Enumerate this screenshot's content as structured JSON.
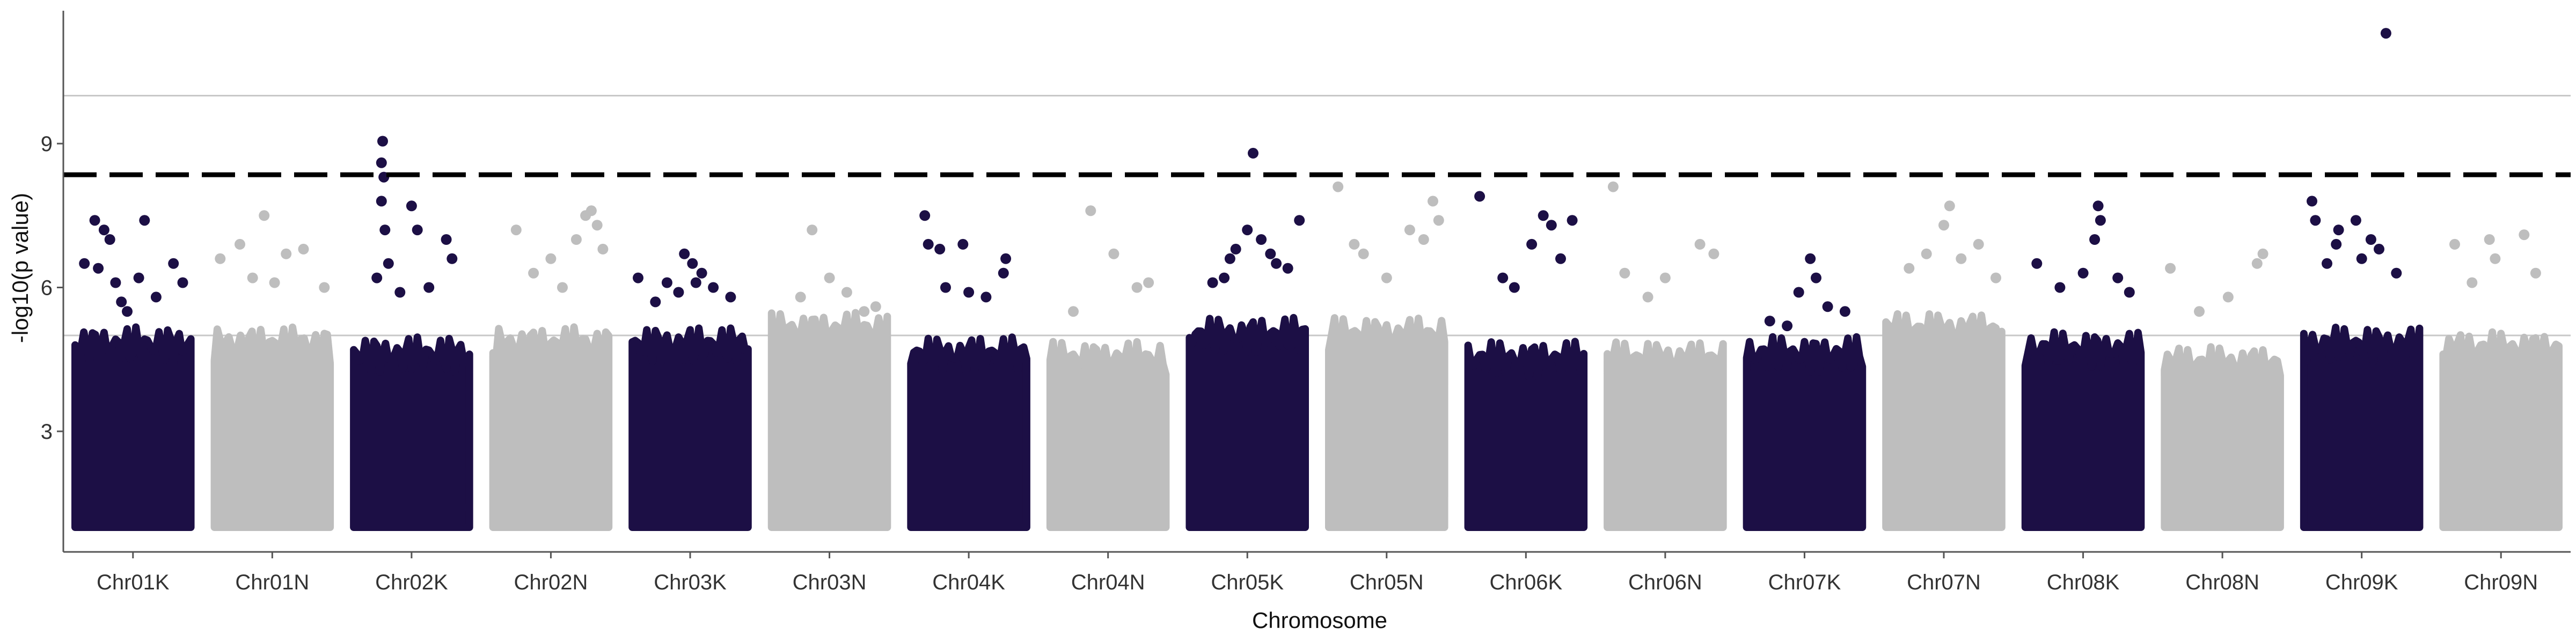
{
  "chart_data": {
    "type": "scatter",
    "subtype": "manhattan",
    "xlabel": "Chromosome",
    "ylabel": "-log10(p value)",
    "categories": [
      "Chr01K",
      "Chr01N",
      "Chr02K",
      "Chr02N",
      "Chr03K",
      "Chr03N",
      "Chr04K",
      "Chr04N",
      "Chr05K",
      "Chr05N",
      "Chr06K",
      "Chr06N",
      "Chr07K",
      "Chr07N",
      "Chr08K",
      "Chr08N",
      "Chr09K",
      "Chr09N"
    ],
    "ylim": [
      0.6,
      11.8
    ],
    "yticks": [
      3,
      6,
      9
    ],
    "colors": {
      "k_group": "#1c0f45",
      "n_group": "#bebebe",
      "threshold": "#000000",
      "refline": "#c8c8c8"
    },
    "threshold_line": {
      "y": 8.35,
      "style": "dashed"
    },
    "reference_lines": [
      5.0,
      10.0
    ],
    "grid": false,
    "legend": "none",
    "chromosomes": [
      {
        "name": "Chr01K",
        "group": "k",
        "bulk_max": 4.8,
        "points": [
          [
            0.08,
            6.5
          ],
          [
            0.17,
            7.4
          ],
          [
            0.25,
            7.2
          ],
          [
            0.3,
            7.0
          ],
          [
            0.35,
            6.1
          ],
          [
            0.45,
            5.5
          ],
          [
            0.55,
            6.2
          ],
          [
            0.6,
            7.4
          ],
          [
            0.7,
            5.8
          ],
          [
            0.85,
            6.5
          ],
          [
            0.93,
            6.1
          ],
          [
            0.2,
            6.4
          ],
          [
            0.4,
            5.7
          ]
        ]
      },
      {
        "name": "Chr01N",
        "group": "n",
        "bulk_max": 4.8,
        "points": [
          [
            0.05,
            6.6
          ],
          [
            0.22,
            6.9
          ],
          [
            0.43,
            7.5
          ],
          [
            0.62,
            6.7
          ],
          [
            0.77,
            6.8
          ],
          [
            0.95,
            6.0
          ],
          [
            0.33,
            6.2
          ],
          [
            0.52,
            6.1
          ]
        ]
      },
      {
        "name": "Chr02K",
        "group": "k",
        "bulk_max": 4.6,
        "points": [
          [
            0.25,
            9.05
          ],
          [
            0.24,
            8.6
          ],
          [
            0.26,
            8.3
          ],
          [
            0.24,
            7.8
          ],
          [
            0.27,
            7.2
          ],
          [
            0.5,
            7.7
          ],
          [
            0.55,
            7.2
          ],
          [
            0.8,
            7.0
          ],
          [
            0.85,
            6.6
          ],
          [
            0.3,
            6.5
          ],
          [
            0.2,
            6.2
          ],
          [
            0.65,
            6.0
          ],
          [
            0.4,
            5.9
          ]
        ]
      },
      {
        "name": "Chr02N",
        "group": "n",
        "bulk_max": 4.8,
        "points": [
          [
            0.2,
            7.2
          ],
          [
            0.35,
            6.3
          ],
          [
            0.5,
            6.6
          ],
          [
            0.72,
            7.0
          ],
          [
            0.85,
            7.6
          ],
          [
            0.9,
            7.3
          ],
          [
            0.8,
            7.5
          ],
          [
            0.6,
            6.0
          ],
          [
            0.95,
            6.8
          ]
        ]
      },
      {
        "name": "Chr03K",
        "group": "k",
        "bulk_max": 4.8,
        "points": [
          [
            0.05,
            6.2
          ],
          [
            0.3,
            6.1
          ],
          [
            0.45,
            6.7
          ],
          [
            0.52,
            6.5
          ],
          [
            0.55,
            6.1
          ],
          [
            0.6,
            6.3
          ],
          [
            0.7,
            6.0
          ],
          [
            0.85,
            5.8
          ],
          [
            0.2,
            5.7
          ],
          [
            0.4,
            5.9
          ]
        ]
      },
      {
        "name": "Chr03N",
        "group": "n",
        "bulk_max": 5.1,
        "points": [
          [
            0.35,
            7.2
          ],
          [
            0.5,
            6.2
          ],
          [
            0.25,
            5.8
          ],
          [
            0.65,
            5.9
          ],
          [
            0.8,
            5.5
          ],
          [
            0.9,
            5.6
          ]
        ]
      },
      {
        "name": "Chr04K",
        "group": "k",
        "bulk_max": 4.6,
        "points": [
          [
            0.12,
            7.5
          ],
          [
            0.15,
            6.9
          ],
          [
            0.25,
            6.8
          ],
          [
            0.45,
            6.9
          ],
          [
            0.82,
            6.6
          ],
          [
            0.8,
            6.3
          ],
          [
            0.5,
            5.9
          ],
          [
            0.3,
            6.0
          ],
          [
            0.65,
            5.8
          ]
        ]
      },
      {
        "name": "Chr04N",
        "group": "n",
        "bulk_max": 4.5,
        "points": [
          [
            0.35,
            7.6
          ],
          [
            0.55,
            6.7
          ],
          [
            0.75,
            6.0
          ],
          [
            0.2,
            5.5
          ],
          [
            0.85,
            6.1
          ]
        ]
      },
      {
        "name": "Chr05K",
        "group": "k",
        "bulk_max": 5.0,
        "points": [
          [
            0.55,
            8.8
          ],
          [
            0.35,
            6.6
          ],
          [
            0.4,
            6.8
          ],
          [
            0.5,
            7.2
          ],
          [
            0.62,
            7.0
          ],
          [
            0.7,
            6.7
          ],
          [
            0.75,
            6.5
          ],
          [
            0.95,
            7.4
          ],
          [
            0.3,
            6.2
          ],
          [
            0.85,
            6.4
          ],
          [
            0.2,
            6.1
          ]
        ]
      },
      {
        "name": "Chr05N",
        "group": "n",
        "bulk_max": 5.0,
        "points": [
          [
            0.08,
            8.1
          ],
          [
            0.22,
            6.9
          ],
          [
            0.3,
            6.7
          ],
          [
            0.7,
            7.2
          ],
          [
            0.9,
            7.8
          ],
          [
            0.95,
            7.4
          ],
          [
            0.5,
            6.2
          ],
          [
            0.82,
            7.0
          ]
        ]
      },
      {
        "name": "Chr06K",
        "group": "k",
        "bulk_max": 4.5,
        "points": [
          [
            0.1,
            7.9
          ],
          [
            0.3,
            6.2
          ],
          [
            0.55,
            6.9
          ],
          [
            0.65,
            7.5
          ],
          [
            0.72,
            7.3
          ],
          [
            0.9,
            7.4
          ],
          [
            0.4,
            6.0
          ],
          [
            0.8,
            6.6
          ]
        ]
      },
      {
        "name": "Chr06N",
        "group": "n",
        "bulk_max": 4.5,
        "points": [
          [
            0.05,
            8.1
          ],
          [
            0.15,
            6.3
          ],
          [
            0.5,
            6.2
          ],
          [
            0.8,
            6.9
          ],
          [
            0.92,
            6.7
          ],
          [
            0.35,
            5.8
          ]
        ]
      },
      {
        "name": "Chr07K",
        "group": "k",
        "bulk_max": 4.6,
        "points": [
          [
            0.55,
            6.6
          ],
          [
            0.6,
            6.2
          ],
          [
            0.45,
            5.9
          ],
          [
            0.7,
            5.6
          ],
          [
            0.2,
            5.3
          ],
          [
            0.85,
            5.5
          ],
          [
            0.35,
            5.2
          ]
        ]
      },
      {
        "name": "Chr07N",
        "group": "n",
        "bulk_max": 5.1,
        "points": [
          [
            0.35,
            6.7
          ],
          [
            0.55,
            7.7
          ],
          [
            0.5,
            7.3
          ],
          [
            0.8,
            6.9
          ],
          [
            0.2,
            6.4
          ],
          [
            0.65,
            6.6
          ],
          [
            0.95,
            6.2
          ]
        ]
      },
      {
        "name": "Chr08K",
        "group": "k",
        "bulk_max": 4.7,
        "points": [
          [
            0.1,
            6.5
          ],
          [
            0.5,
            6.3
          ],
          [
            0.63,
            7.7
          ],
          [
            0.65,
            7.4
          ],
          [
            0.6,
            7.0
          ],
          [
            0.3,
            6.0
          ],
          [
            0.8,
            6.2
          ],
          [
            0.9,
            5.9
          ]
        ]
      },
      {
        "name": "Chr08N",
        "group": "n",
        "bulk_max": 4.4,
        "points": [
          [
            0.05,
            6.4
          ],
          [
            0.55,
            5.8
          ],
          [
            0.8,
            6.5
          ],
          [
            0.85,
            6.7
          ],
          [
            0.3,
            5.5
          ]
        ]
      },
      {
        "name": "Chr09K",
        "group": "k",
        "bulk_max": 4.8,
        "points": [
          [
            0.71,
            11.3
          ],
          [
            0.07,
            7.8
          ],
          [
            0.1,
            7.4
          ],
          [
            0.28,
            6.9
          ],
          [
            0.3,
            7.2
          ],
          [
            0.45,
            7.4
          ],
          [
            0.58,
            7.0
          ],
          [
            0.65,
            6.8
          ],
          [
            0.2,
            6.5
          ],
          [
            0.8,
            6.3
          ],
          [
            0.5,
            6.6
          ]
        ]
      },
      {
        "name": "Chr09N",
        "group": "n",
        "bulk_max": 4.7,
        "points": [
          [
            0.1,
            6.9
          ],
          [
            0.4,
            7.0
          ],
          [
            0.45,
            6.6
          ],
          [
            0.7,
            7.1
          ],
          [
            0.8,
            6.3
          ],
          [
            0.25,
            6.1
          ]
        ]
      }
    ]
  }
}
